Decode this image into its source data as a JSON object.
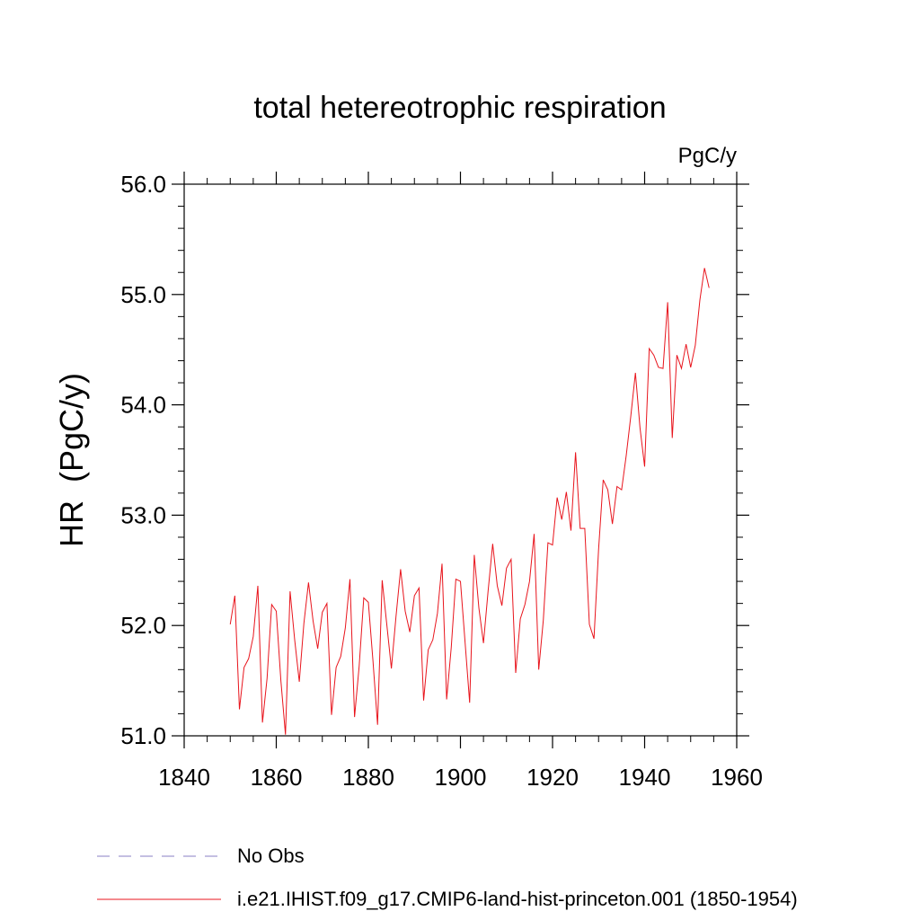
{
  "chart_data": {
    "type": "line",
    "title": "total hetereotrophic respiration",
    "units": "PgC/y",
    "ylabel": "HR  (PgC/y)",
    "xlabel": "",
    "xlim": [
      1840,
      1960
    ],
    "ylim": [
      51.0,
      56.0
    ],
    "x_ticks": [
      1840,
      1860,
      1880,
      1900,
      1920,
      1940,
      1960
    ],
    "y_ticks": [
      51.0,
      52.0,
      53.0,
      54.0,
      55.0,
      56.0
    ],
    "x_tick_labels": [
      "1840",
      "1860",
      "1880",
      "1900",
      "1920",
      "1940",
      "1960"
    ],
    "y_tick_labels": [
      "51.0",
      "52.0",
      "53.0",
      "54.0",
      "55.0",
      "56.0"
    ],
    "grid": false,
    "legend_position": "bottom",
    "legend": [
      {
        "label": "No Obs",
        "style": "dashed",
        "color": "#8a7fc6"
      },
      {
        "label": "i.e21.IHIST.f09_g17.CMIP6-land-hist-princeton.001 (1850-1954)",
        "style": "solid",
        "color": "#e8141c"
      }
    ],
    "series": [
      {
        "name": "i.e21.IHIST.f09_g17.CMIP6-land-hist-princeton.001 (1850-1954)",
        "color": "#e8141c",
        "x": [
          1850,
          1851,
          1852,
          1853,
          1854,
          1855,
          1856,
          1857,
          1858,
          1859,
          1860,
          1861,
          1862,
          1863,
          1864,
          1865,
          1866,
          1867,
          1868,
          1869,
          1870,
          1871,
          1872,
          1873,
          1874,
          1875,
          1876,
          1877,
          1878,
          1879,
          1880,
          1881,
          1882,
          1883,
          1884,
          1885,
          1886,
          1887,
          1888,
          1889,
          1890,
          1891,
          1892,
          1893,
          1894,
          1895,
          1896,
          1897,
          1898,
          1899,
          1900,
          1901,
          1902,
          1903,
          1904,
          1905,
          1906,
          1907,
          1908,
          1909,
          1910,
          1911,
          1912,
          1913,
          1914,
          1915,
          1916,
          1917,
          1918,
          1919,
          1920,
          1921,
          1922,
          1923,
          1924,
          1925,
          1926,
          1927,
          1928,
          1929,
          1930,
          1931,
          1932,
          1933,
          1934,
          1935,
          1936,
          1937,
          1938,
          1939,
          1940,
          1941,
          1942,
          1943,
          1944,
          1945,
          1946,
          1947,
          1948,
          1949,
          1950,
          1951,
          1952,
          1953,
          1954
        ],
        "values": [
          52.01,
          52.27,
          51.24,
          51.62,
          51.7,
          51.9,
          52.36,
          51.12,
          51.52,
          52.19,
          52.13,
          51.5,
          51.01,
          52.31,
          51.87,
          51.49,
          52.02,
          52.39,
          52.04,
          51.79,
          52.12,
          52.2,
          51.19,
          51.62,
          51.72,
          51.98,
          52.42,
          51.17,
          51.63,
          52.25,
          52.21,
          51.68,
          51.1,
          52.41,
          52.01,
          51.61,
          52.08,
          52.51,
          52.13,
          51.94,
          52.27,
          52.34,
          51.32,
          51.78,
          51.87,
          52.11,
          52.56,
          51.33,
          51.8,
          52.42,
          52.4,
          51.85,
          51.3,
          52.64,
          52.16,
          51.84,
          52.31,
          52.74,
          52.36,
          52.18,
          52.52,
          52.6,
          51.57,
          52.06,
          52.19,
          52.4,
          52.83,
          51.6,
          52.05,
          52.75,
          52.73,
          53.16,
          52.96,
          53.21,
          52.86,
          53.57,
          52.88,
          52.88,
          52.01,
          51.88,
          52.69,
          53.32,
          53.23,
          52.92,
          53.26,
          53.23,
          53.54,
          53.9,
          54.29,
          53.79,
          53.44,
          54.51,
          54.45,
          54.34,
          54.33,
          54.93,
          53.7,
          54.45,
          54.33,
          54.55,
          54.34,
          54.54,
          54.95,
          55.24,
          55.06
        ]
      }
    ]
  }
}
